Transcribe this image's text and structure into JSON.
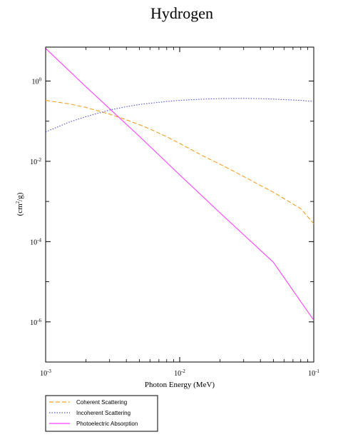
{
  "chart_data": {
    "type": "line",
    "title": "Hydrogen",
    "xlabel": "Photon Energy (MeV)",
    "ylabel_base": "(cm",
    "ylabel_exp": "2",
    "ylabel_tail": "/g)",
    "x_scale": "log",
    "y_scale": "log",
    "xlim": [
      0.001,
      0.1
    ],
    "ylim": [
      1e-07,
      7
    ],
    "x_ticks": [
      {
        "value": 0.001,
        "base": "10",
        "exp": "-3"
      },
      {
        "value": 0.01,
        "base": "10",
        "exp": "-2"
      },
      {
        "value": 0.1,
        "base": "10",
        "exp": "-1"
      }
    ],
    "y_ticks": [
      {
        "value": 1,
        "base": "10",
        "exp": "0"
      },
      {
        "value": 0.01,
        "base": "10",
        "exp": "-2"
      },
      {
        "value": 0.0001,
        "base": "10",
        "exp": "-4"
      },
      {
        "value": 1e-06,
        "base": "10",
        "exp": "-6"
      }
    ],
    "grid": false,
    "legend_position": "bottom-left-outside",
    "series": [
      {
        "name": "Coherent Scattering",
        "color": "#f0a020",
        "dash": "dashed",
        "x": [
          0.001,
          0.0015,
          0.002,
          0.003,
          0.004,
          0.005,
          0.006,
          0.008,
          0.01,
          0.015,
          0.02,
          0.03,
          0.04,
          0.05,
          0.06,
          0.08,
          0.1
        ],
        "y": [
          0.33,
          0.27,
          0.22,
          0.15,
          0.108,
          0.082,
          0.064,
          0.041,
          0.028,
          0.0135,
          0.0085,
          0.0042,
          0.0025,
          0.0017,
          0.00118,
          0.00066,
          0.00028
        ]
      },
      {
        "name": "Incoherent Scattering",
        "color": "#5050d0",
        "dash": "dotted",
        "x": [
          0.001,
          0.0015,
          0.002,
          0.003,
          0.004,
          0.005,
          0.006,
          0.008,
          0.01,
          0.015,
          0.02,
          0.03,
          0.04,
          0.05,
          0.06,
          0.08,
          0.1
        ],
        "y": [
          0.054,
          0.095,
          0.13,
          0.19,
          0.23,
          0.26,
          0.28,
          0.31,
          0.33,
          0.355,
          0.365,
          0.37,
          0.365,
          0.355,
          0.345,
          0.33,
          0.31
        ]
      },
      {
        "name": "Photoelectric Absorption",
        "color": "#ff40ff",
        "dash": "solid",
        "x": [
          0.001,
          0.002,
          0.005,
          0.01,
          0.02,
          0.05,
          0.1
        ],
        "y": [
          6.5,
          0.72,
          0.042,
          0.0046,
          0.00052,
          3.05e-05,
          1.1e-06
        ]
      }
    ]
  }
}
